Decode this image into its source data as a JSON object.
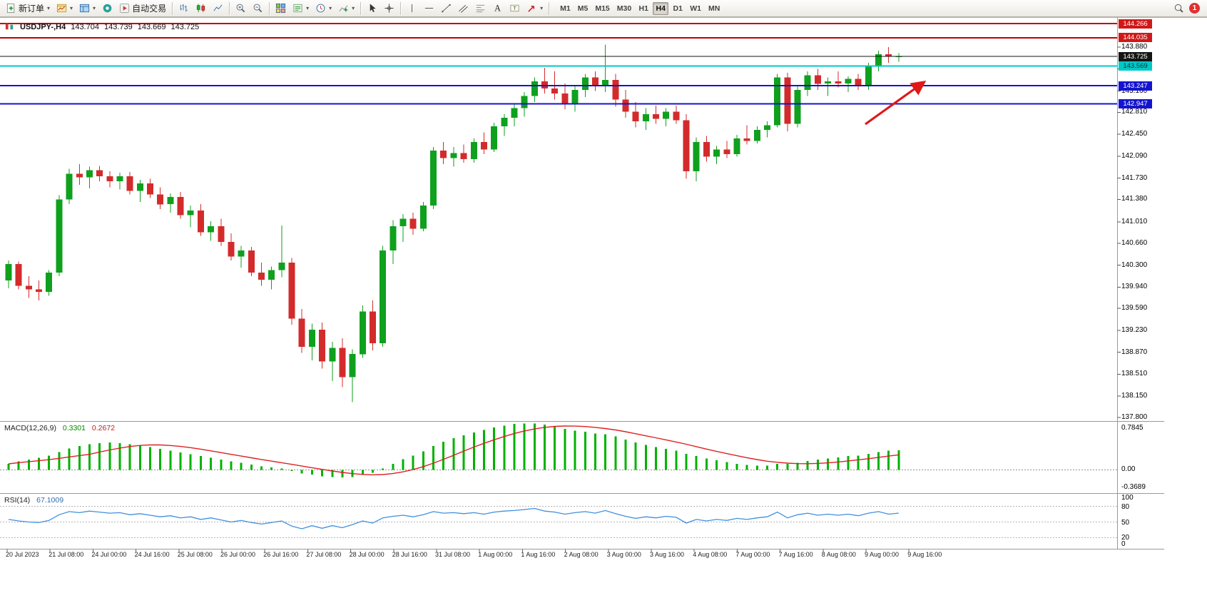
{
  "toolbar": {
    "new_order_label": "新订单",
    "autotrading_label": "自动交易",
    "timeframes": [
      "M1",
      "M5",
      "M15",
      "M30",
      "H1",
      "H4",
      "D1",
      "W1",
      "MN"
    ],
    "active_timeframe": "H4",
    "notification_count": "1"
  },
  "info_line": {
    "symbol": "USDJPY-,H4",
    "open": "143.704",
    "high": "143.739",
    "low": "143.669",
    "close": "143.725"
  },
  "price_axis": {
    "labels": [
      "143.880",
      "143.520",
      "143.160",
      "142.810",
      "142.450",
      "142.090",
      "141.730",
      "141.380",
      "141.010",
      "140.660",
      "140.300",
      "139.940",
      "139.590",
      "139.230",
      "138.870",
      "138.510",
      "138.150",
      "137.800"
    ]
  },
  "levels": [
    {
      "price": 144.266,
      "label": "144.266",
      "color": "#c00000",
      "thickness": 2,
      "badge_bg": "#d01818",
      "badge_fg": "#ffffff"
    },
    {
      "price": 144.035,
      "label": "144.035",
      "color": "#c00000",
      "thickness": 2,
      "badge_bg": "#d01818",
      "badge_fg": "#ffffff"
    },
    {
      "price": 143.725,
      "label": "143.725",
      "color": "#141414",
      "thickness": 1,
      "badge_bg": "#141414",
      "badge_fg": "#ffffff"
    },
    {
      "price": 143.569,
      "label": "143.569",
      "color": "#00c8c8",
      "thickness": 2,
      "badge_bg": "#00c8c8",
      "badge_fg": "#003333"
    },
    {
      "price": 143.247,
      "label": "143.247",
      "color": "#1414d0",
      "thickness": 2,
      "badge_bg": "#1414d0",
      "badge_fg": "#ffffff"
    },
    {
      "price": 142.947,
      "label": "142.947",
      "color": "#1414d0",
      "thickness": 2,
      "badge_bg": "#1414d0",
      "badge_fg": "#ffffff"
    }
  ],
  "annotation_arrow": {
    "from": [
      1213,
      174
    ],
    "to": [
      1294,
      116
    ],
    "color": "#e01818"
  },
  "time_axis": [
    "20 Jul 2023",
    "21 Jul 08:00",
    "24 Jul 00:00",
    "24 Jul 16:00",
    "25 Jul 08:00",
    "26 Jul 00:00",
    "26 Jul 16:00",
    "27 Jul 08:00",
    "28 Jul 00:00",
    "28 Jul 16:00",
    "31 Jul 08:00",
    "1 Aug 00:00",
    "1 Aug 16:00",
    "2 Aug 08:00",
    "3 Aug 00:00",
    "3 Aug 16:00",
    "4 Aug 08:00",
    "7 Aug 00:00",
    "7 Aug 16:00",
    "8 Aug 08:00",
    "9 Aug 00:00",
    "9 Aug 16:00"
  ],
  "macd_panel": {
    "title": "MACD(12,26,9)",
    "main_value": "0.3301",
    "signal_value": "0.2672",
    "scale_top": "0.7845",
    "scale_zero": "0.00",
    "scale_bottom": "-0.3689"
  },
  "rsi_panel": {
    "title": "RSI(14)",
    "value": "67.1009",
    "scale": [
      "100",
      "80",
      "50",
      "20",
      "0"
    ]
  },
  "chart_data": {
    "type": "candlestick",
    "symbol": "USDJPY",
    "timeframe": "H4",
    "visible_range": {
      "start": "20 Jul 2023",
      "end": "9 Aug 2023 16:00"
    },
    "y_range": [
      137.75,
      144.33
    ],
    "up_color": "#0fa01e",
    "down_color": "#d32b2b",
    "candles": [
      [
        140.05,
        140.38,
        139.92,
        140.32
      ],
      [
        140.32,
        140.36,
        139.9,
        139.96
      ],
      [
        139.96,
        140.12,
        139.76,
        139.9
      ],
      [
        139.9,
        140.05,
        139.72,
        139.86
      ],
      [
        139.86,
        140.22,
        139.8,
        140.18
      ],
      [
        140.18,
        141.45,
        140.12,
        141.38
      ],
      [
        141.38,
        141.88,
        141.3,
        141.8
      ],
      [
        141.8,
        141.96,
        141.62,
        141.74
      ],
      [
        141.74,
        141.92,
        141.56,
        141.86
      ],
      [
        141.86,
        141.93,
        141.68,
        141.76
      ],
      [
        141.76,
        141.84,
        141.58,
        141.68
      ],
      [
        141.68,
        141.82,
        141.54,
        141.76
      ],
      [
        141.76,
        141.83,
        141.46,
        141.52
      ],
      [
        141.52,
        141.7,
        141.34,
        141.64
      ],
      [
        141.64,
        141.72,
        141.4,
        141.46
      ],
      [
        141.46,
        141.58,
        141.22,
        141.3
      ],
      [
        141.3,
        141.48,
        141.16,
        141.42
      ],
      [
        141.42,
        141.5,
        141.06,
        141.12
      ],
      [
        141.12,
        141.28,
        140.92,
        141.2
      ],
      [
        141.2,
        141.3,
        140.78,
        140.84
      ],
      [
        140.84,
        141.02,
        140.7,
        140.94
      ],
      [
        140.94,
        141.06,
        140.62,
        140.68
      ],
      [
        140.68,
        140.82,
        140.38,
        140.44
      ],
      [
        140.44,
        140.62,
        140.26,
        140.54
      ],
      [
        140.54,
        140.6,
        140.12,
        140.18
      ],
      [
        140.18,
        140.34,
        139.96,
        140.06
      ],
      [
        140.06,
        140.28,
        139.9,
        140.22
      ],
      [
        140.22,
        140.95,
        140.1,
        140.34
      ],
      [
        140.34,
        140.42,
        139.32,
        139.42
      ],
      [
        139.42,
        139.58,
        138.86,
        138.96
      ],
      [
        138.96,
        139.34,
        138.74,
        139.24
      ],
      [
        139.24,
        139.36,
        138.6,
        138.72
      ],
      [
        138.72,
        139.04,
        138.4,
        138.94
      ],
      [
        138.94,
        139.1,
        138.3,
        138.46
      ],
      [
        138.46,
        138.92,
        138.05,
        138.84
      ],
      [
        138.84,
        139.64,
        138.78,
        139.54
      ],
      [
        139.54,
        139.72,
        138.9,
        139.02
      ],
      [
        139.02,
        140.62,
        138.96,
        140.54
      ],
      [
        140.54,
        141.04,
        140.32,
        140.94
      ],
      [
        140.94,
        141.14,
        140.68,
        141.06
      ],
      [
        141.06,
        141.16,
        140.8,
        140.9
      ],
      [
        140.9,
        141.34,
        140.86,
        141.28
      ],
      [
        141.28,
        142.24,
        141.22,
        142.18
      ],
      [
        142.18,
        142.32,
        141.96,
        142.06
      ],
      [
        142.06,
        142.24,
        141.92,
        142.14
      ],
      [
        142.14,
        142.28,
        141.98,
        142.04
      ],
      [
        142.04,
        142.38,
        141.98,
        142.32
      ],
      [
        142.32,
        142.48,
        142.12,
        142.2
      ],
      [
        142.2,
        142.64,
        142.16,
        142.58
      ],
      [
        142.58,
        142.78,
        142.42,
        142.72
      ],
      [
        142.72,
        142.94,
        142.58,
        142.88
      ],
      [
        142.88,
        143.14,
        142.74,
        143.08
      ],
      [
        143.08,
        143.38,
        142.98,
        143.32
      ],
      [
        143.32,
        143.54,
        143.12,
        143.2
      ],
      [
        143.2,
        143.48,
        143.02,
        143.12
      ],
      [
        143.12,
        143.28,
        142.86,
        142.96
      ],
      [
        142.96,
        143.24,
        142.82,
        143.18
      ],
      [
        143.18,
        143.44,
        143.06,
        143.38
      ],
      [
        143.38,
        143.48,
        143.16,
        143.26
      ],
      [
        143.26,
        143.92,
        143.14,
        143.34
      ],
      [
        143.34,
        143.44,
        142.9,
        143.02
      ],
      [
        143.02,
        143.18,
        142.72,
        142.82
      ],
      [
        142.82,
        142.98,
        142.56,
        142.66
      ],
      [
        142.66,
        142.88,
        142.52,
        142.78
      ],
      [
        142.78,
        142.92,
        142.62,
        142.7
      ],
      [
        142.7,
        142.88,
        142.58,
        142.82
      ],
      [
        142.82,
        142.92,
        142.62,
        142.68
      ],
      [
        142.68,
        142.78,
        141.72,
        141.84
      ],
      [
        141.84,
        142.4,
        141.68,
        142.32
      ],
      [
        142.32,
        142.42,
        142.0,
        142.08
      ],
      [
        142.08,
        142.26,
        141.96,
        142.2
      ],
      [
        142.2,
        142.34,
        142.06,
        142.12
      ],
      [
        142.12,
        142.44,
        142.08,
        142.38
      ],
      [
        142.38,
        142.6,
        142.28,
        142.34
      ],
      [
        142.34,
        142.58,
        142.3,
        142.52
      ],
      [
        142.52,
        142.66,
        142.4,
        142.6
      ],
      [
        142.6,
        143.44,
        142.56,
        143.38
      ],
      [
        143.38,
        143.46,
        142.5,
        142.62
      ],
      [
        142.62,
        143.24,
        142.56,
        143.18
      ],
      [
        143.18,
        143.48,
        143.08,
        143.42
      ],
      [
        143.42,
        143.52,
        143.18,
        143.28
      ],
      [
        143.28,
        143.38,
        143.08,
        143.32
      ],
      [
        143.32,
        143.48,
        143.22,
        143.28
      ],
      [
        143.28,
        143.4,
        143.14,
        143.36
      ],
      [
        143.36,
        143.44,
        143.18,
        143.24
      ],
      [
        143.24,
        143.62,
        143.18,
        143.58
      ],
      [
        143.58,
        143.82,
        143.48,
        143.76
      ],
      [
        143.76,
        143.88,
        143.62,
        143.72
      ],
      [
        143.72,
        143.78,
        143.64,
        143.73
      ]
    ],
    "indicators": {
      "macd": {
        "params": [
          12,
          26,
          9
        ],
        "scale": [
          -0.3689,
          0.7845
        ],
        "histogram_color": "#00b200",
        "signal_color": "#dd2222",
        "histogram": [
          0.1,
          0.14,
          0.17,
          0.2,
          0.24,
          0.3,
          0.36,
          0.4,
          0.43,
          0.45,
          0.46,
          0.45,
          0.43,
          0.41,
          0.38,
          0.35,
          0.32,
          0.29,
          0.26,
          0.23,
          0.2,
          0.17,
          0.14,
          0.12,
          0.09,
          0.06,
          0.04,
          0.02,
          -0.02,
          -0.06,
          -0.08,
          -0.11,
          -0.12,
          -0.13,
          -0.12,
          -0.08,
          -0.05,
          0.02,
          0.1,
          0.18,
          0.24,
          0.31,
          0.4,
          0.47,
          0.53,
          0.58,
          0.63,
          0.67,
          0.71,
          0.74,
          0.77,
          0.78,
          0.78,
          0.76,
          0.73,
          0.69,
          0.66,
          0.64,
          0.61,
          0.6,
          0.56,
          0.51,
          0.46,
          0.42,
          0.38,
          0.35,
          0.32,
          0.27,
          0.23,
          0.19,
          0.16,
          0.13,
          0.1,
          0.08,
          0.07,
          0.07,
          0.1,
          0.1,
          0.12,
          0.15,
          0.17,
          0.19,
          0.21,
          0.23,
          0.24,
          0.27,
          0.3,
          0.32,
          0.33
        ]
      },
      "rsi": {
        "period": 14,
        "scale": [
          0,
          100
        ],
        "line_color": "#418fde",
        "levels": [
          80,
          50,
          20
        ],
        "values": [
          55,
          52,
          50,
          49,
          53,
          64,
          70,
          68,
          71,
          69,
          67,
          68,
          64,
          66,
          63,
          60,
          62,
          58,
          60,
          55,
          58,
          54,
          50,
          53,
          49,
          46,
          49,
          52,
          42,
          37,
          43,
          38,
          43,
          39,
          45,
          52,
          48,
          58,
          61,
          63,
          60,
          64,
          70,
          67,
          68,
          66,
          68,
          65,
          69,
          71,
          72,
          74,
          76,
          71,
          69,
          65,
          68,
          70,
          67,
          72,
          66,
          61,
          57,
          60,
          58,
          61,
          59,
          48,
          55,
          52,
          55,
          53,
          57,
          55,
          58,
          60,
          69,
          58,
          64,
          67,
          63,
          65,
          63,
          65,
          62,
          67,
          70,
          65,
          67.1
        ]
      }
    }
  }
}
